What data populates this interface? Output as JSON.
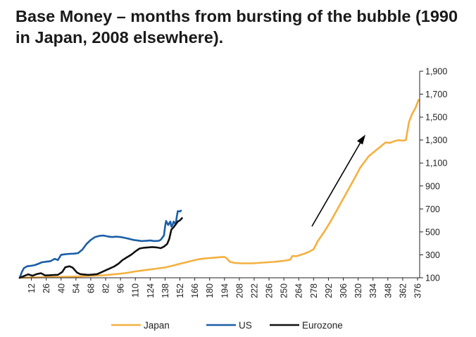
{
  "chart_data": {
    "type": "line",
    "title": "Base Money – months from bursting of the bubble (1990 in Japan, 2008 elsewhere).",
    "xlabel": "",
    "ylabel": "",
    "x_ticks": [
      "12",
      "26",
      "40",
      "54",
      "68",
      "82",
      "96",
      "110",
      "124",
      "138",
      "152",
      "166",
      "180",
      "194",
      "208",
      "222",
      "236",
      "250",
      "264",
      "278",
      "292",
      "306",
      "320",
      "334",
      "348",
      "362",
      "376"
    ],
    "y_ticks": [
      "1,900",
      "1,700",
      "1,500",
      "1,300",
      "1,100",
      "900",
      "700",
      "500",
      "300",
      "100"
    ],
    "xlim": [
      1,
      378
    ],
    "ylim": [
      100,
      1900
    ],
    "grid": false,
    "legend_position": "bottom",
    "series": [
      {
        "name": "Japan",
        "color": "#f5b040",
        "points": [
          [
            1,
            100
          ],
          [
            10,
            102
          ],
          [
            20,
            104
          ],
          [
            30,
            106
          ],
          [
            40,
            108
          ],
          [
            50,
            110
          ],
          [
            60,
            113
          ],
          [
            70,
            117
          ],
          [
            80,
            122
          ],
          [
            90,
            130
          ],
          [
            100,
            140
          ],
          [
            110,
            155
          ],
          [
            120,
            168
          ],
          [
            130,
            180
          ],
          [
            138,
            190
          ],
          [
            145,
            205
          ],
          [
            152,
            222
          ],
          [
            158,
            235
          ],
          [
            164,
            250
          ],
          [
            170,
            262
          ],
          [
            175,
            268
          ],
          [
            180,
            272
          ],
          [
            185,
            276
          ],
          [
            190,
            280
          ],
          [
            194,
            282
          ],
          [
            196,
            270
          ],
          [
            199,
            240
          ],
          [
            203,
            230
          ],
          [
            210,
            226
          ],
          [
            220,
            226
          ],
          [
            230,
            232
          ],
          [
            240,
            238
          ],
          [
            250,
            248
          ],
          [
            256,
            258
          ],
          [
            258,
            290
          ],
          [
            262,
            288
          ],
          [
            266,
            300
          ],
          [
            270,
            312
          ],
          [
            274,
            328
          ],
          [
            278,
            348
          ],
          [
            282,
            420
          ],
          [
            288,
            500
          ],
          [
            294,
            590
          ],
          [
            300,
            690
          ],
          [
            306,
            790
          ],
          [
            312,
            890
          ],
          [
            318,
            990
          ],
          [
            322,
            1060
          ],
          [
            326,
            1110
          ],
          [
            330,
            1160
          ],
          [
            334,
            1190
          ],
          [
            338,
            1220
          ],
          [
            342,
            1250
          ],
          [
            346,
            1280
          ],
          [
            350,
            1275
          ],
          [
            354,
            1290
          ],
          [
            358,
            1300
          ],
          [
            362,
            1295
          ],
          [
            365,
            1300
          ],
          [
            368,
            1460
          ],
          [
            371,
            1530
          ],
          [
            374,
            1580
          ],
          [
            377,
            1650
          ]
        ]
      },
      {
        "name": "US",
        "color": "#1b5ea8",
        "points": [
          [
            1,
            100
          ],
          [
            3,
            150
          ],
          [
            5,
            185
          ],
          [
            8,
            200
          ],
          [
            12,
            205
          ],
          [
            15,
            210
          ],
          [
            18,
            220
          ],
          [
            22,
            235
          ],
          [
            26,
            240
          ],
          [
            30,
            245
          ],
          [
            34,
            265
          ],
          [
            37,
            255
          ],
          [
            40,
            300
          ],
          [
            44,
            305
          ],
          [
            48,
            308
          ],
          [
            52,
            310
          ],
          [
            56,
            315
          ],
          [
            60,
            345
          ],
          [
            64,
            395
          ],
          [
            68,
            430
          ],
          [
            72,
            455
          ],
          [
            76,
            465
          ],
          [
            80,
            468
          ],
          [
            84,
            460
          ],
          [
            88,
            455
          ],
          [
            92,
            458
          ],
          [
            96,
            455
          ],
          [
            100,
            448
          ],
          [
            104,
            440
          ],
          [
            108,
            430
          ],
          [
            112,
            425
          ],
          [
            116,
            420
          ],
          [
            120,
            422
          ],
          [
            124,
            425
          ],
          [
            128,
            420
          ],
          [
            132,
            422
          ],
          [
            134,
            432
          ],
          [
            137,
            470
          ],
          [
            138,
            545
          ],
          [
            139,
            595
          ],
          [
            141,
            560
          ],
          [
            143,
            590
          ],
          [
            144,
            545
          ],
          [
            145,
            560
          ],
          [
            146,
            590
          ],
          [
            148,
            565
          ],
          [
            149,
            630
          ],
          [
            150,
            680
          ],
          [
            152,
            678
          ],
          [
            153,
            685
          ]
        ]
      },
      {
        "name": "Eurozone",
        "color": "#111111",
        "points": [
          [
            1,
            100
          ],
          [
            5,
            115
          ],
          [
            9,
            130
          ],
          [
            13,
            118
          ],
          [
            17,
            132
          ],
          [
            21,
            140
          ],
          [
            25,
            120
          ],
          [
            29,
            122
          ],
          [
            33,
            124
          ],
          [
            37,
            126
          ],
          [
            41,
            150
          ],
          [
            44,
            192
          ],
          [
            48,
            200
          ],
          [
            51,
            188
          ],
          [
            55,
            145
          ],
          [
            58,
            132
          ],
          [
            62,
            128
          ],
          [
            66,
            125
          ],
          [
            70,
            128
          ],
          [
            74,
            132
          ],
          [
            78,
            148
          ],
          [
            82,
            165
          ],
          [
            86,
            182
          ],
          [
            90,
            198
          ],
          [
            94,
            222
          ],
          [
            98,
            255
          ],
          [
            102,
            278
          ],
          [
            106,
            300
          ],
          [
            110,
            330
          ],
          [
            114,
            355
          ],
          [
            118,
            362
          ],
          [
            122,
            365
          ],
          [
            126,
            368
          ],
          [
            130,
            365
          ],
          [
            134,
            358
          ],
          [
            137,
            372
          ],
          [
            140,
            395
          ],
          [
            142,
            440
          ],
          [
            144,
            520
          ],
          [
            146,
            540
          ],
          [
            148,
            565
          ],
          [
            150,
            590
          ],
          [
            152,
            600
          ],
          [
            153,
            610
          ],
          [
            154,
            620
          ]
        ]
      }
    ]
  }
}
